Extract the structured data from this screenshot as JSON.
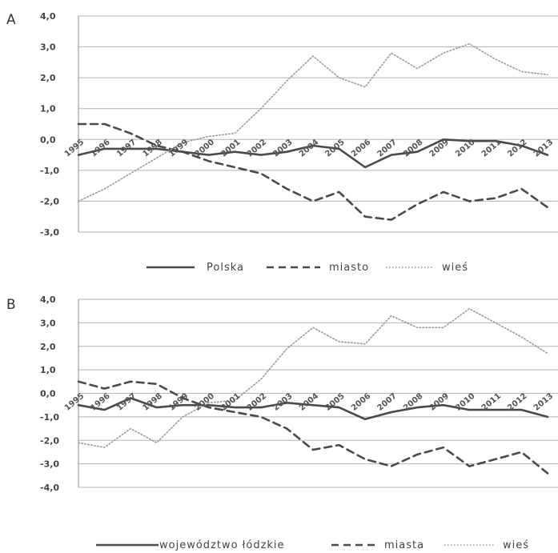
{
  "colors": {
    "background": "#ffffff",
    "grid": "#b3b3b3",
    "solid_line": "#4a4a4a",
    "dashed_line": "#4a4a4a",
    "dotted_line": "#9a9a9a"
  },
  "chart_data": [
    {
      "type": "line",
      "panel_label": "A",
      "categories": [
        "1995",
        "1996",
        "1997",
        "1998",
        "1999",
        "2000",
        "2001",
        "2002",
        "2003",
        "2004",
        "2005",
        "2006",
        "2007",
        "2008",
        "2009",
        "2010",
        "2011",
        "2012",
        "2013"
      ],
      "ylim": [
        -3.0,
        4.0
      ],
      "yticks": [
        "4,0",
        "3,0",
        "2,0",
        "1,0",
        "0,0",
        "-1,0",
        "-2,0",
        "-3,0"
      ],
      "grid": true,
      "legend_position": "bottom",
      "series": [
        {
          "name": "Polska",
          "style": "solid",
          "values": [
            -0.5,
            -0.3,
            -0.3,
            -0.3,
            -0.4,
            -0.5,
            -0.4,
            -0.5,
            -0.4,
            -0.2,
            -0.3,
            -0.9,
            -0.5,
            -0.4,
            0.0,
            -0.05,
            -0.05,
            -0.2,
            -0.5
          ]
        },
        {
          "name": "miasto",
          "style": "dashed",
          "values": [
            0.5,
            0.5,
            0.2,
            -0.2,
            -0.4,
            -0.7,
            -0.9,
            -1.1,
            -1.6,
            -2.0,
            -1.7,
            -2.5,
            -2.6,
            -2.1,
            -1.7,
            -2.0,
            -1.9,
            -1.6,
            -2.2
          ]
        },
        {
          "name": "wieś",
          "style": "dotted",
          "values": [
            -2.0,
            -1.6,
            -1.1,
            -0.6,
            -0.1,
            0.1,
            0.2,
            1.0,
            1.9,
            2.7,
            2.0,
            1.7,
            2.8,
            2.3,
            2.8,
            3.1,
            2.6,
            2.2,
            2.1
          ]
        }
      ]
    },
    {
      "type": "line",
      "panel_label": "B",
      "categories": [
        "1995",
        "1996",
        "1997",
        "1998",
        "1999",
        "2000",
        "2001",
        "2002",
        "2003",
        "2004",
        "2005",
        "2006",
        "2007",
        "2008",
        "2009",
        "2010",
        "2011",
        "2012",
        "2013"
      ],
      "ylim": [
        -4.0,
        4.0
      ],
      "yticks": [
        "4,0",
        "3,0",
        "2,0",
        "1,0",
        "0,0",
        "-1,0",
        "-2,0",
        "-3,0",
        "-4,0"
      ],
      "grid": true,
      "legend_position": "bottom",
      "series": [
        {
          "name": "województwo łódzkie",
          "style": "solid",
          "values": [
            -0.5,
            -0.7,
            -0.2,
            -0.6,
            -0.5,
            -0.5,
            -0.6,
            -0.6,
            -0.4,
            -0.5,
            -0.6,
            -1.1,
            -0.8,
            -0.6,
            -0.5,
            -0.7,
            -0.7,
            -0.7,
            -1.0
          ]
        },
        {
          "name": "miasta",
          "style": "dashed",
          "values": [
            0.5,
            0.2,
            0.5,
            0.4,
            -0.2,
            -0.6,
            -0.8,
            -1.0,
            -1.5,
            -2.4,
            -2.2,
            -2.8,
            -3.1,
            -2.6,
            -2.3,
            -3.1,
            -2.8,
            -2.5,
            -3.4
          ]
        },
        {
          "name": "wieś",
          "style": "dotted",
          "values": [
            -2.1,
            -2.3,
            -1.5,
            -2.1,
            -1.0,
            -0.4,
            -0.3,
            0.6,
            1.9,
            2.8,
            2.2,
            2.1,
            3.3,
            2.8,
            2.8,
            3.6,
            3.0,
            2.4,
            1.7
          ]
        }
      ]
    }
  ]
}
